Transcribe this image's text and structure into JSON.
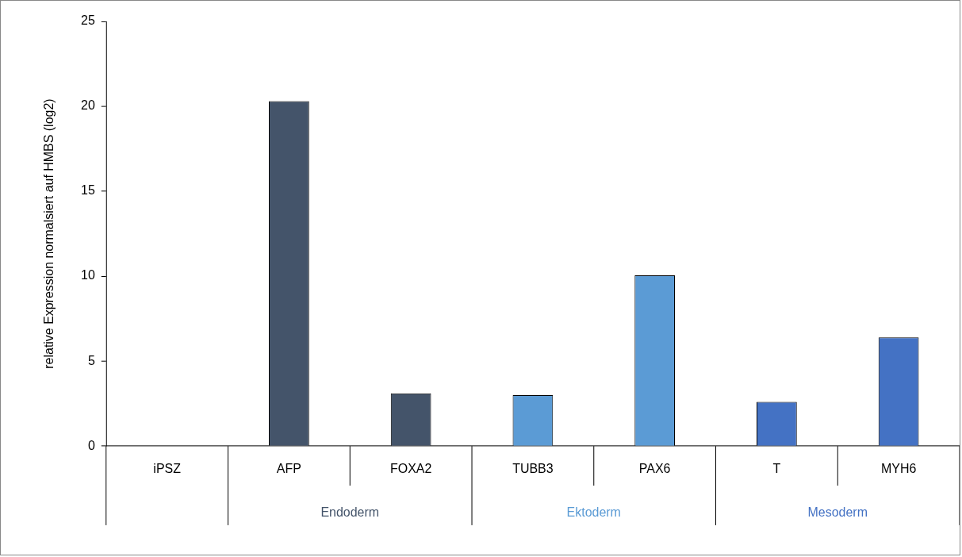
{
  "chart_data": {
    "type": "bar",
    "ylabel": "relative Expression normalsiert auf HMBS (log2)",
    "categories": [
      "iPSZ",
      "AFP",
      "FOXA2",
      "TUBB3",
      "PAX6",
      "T",
      "MYH6"
    ],
    "series": [
      {
        "color": "#44546a",
        "values": [
          0,
          null,
          null,
          null,
          null,
          null,
          null
        ]
      },
      {
        "name": "Endoderm",
        "color": "#44546a",
        "values": [
          null,
          20.3,
          3.1,
          null,
          null,
          null,
          null
        ]
      },
      {
        "name": "Ektoderm",
        "color": "#5b9bd5",
        "values": [
          null,
          null,
          null,
          3.0,
          10.05,
          null,
          null
        ]
      },
      {
        "name": "Mesoderm",
        "color": "#4472c4",
        "values": [
          null,
          null,
          null,
          null,
          null,
          2.6,
          6.4
        ]
      }
    ],
    "ylim": [
      0,
      25
    ],
    "yticks": [
      0,
      5,
      10,
      15,
      20,
      25
    ],
    "grid": false,
    "legend": false
  }
}
